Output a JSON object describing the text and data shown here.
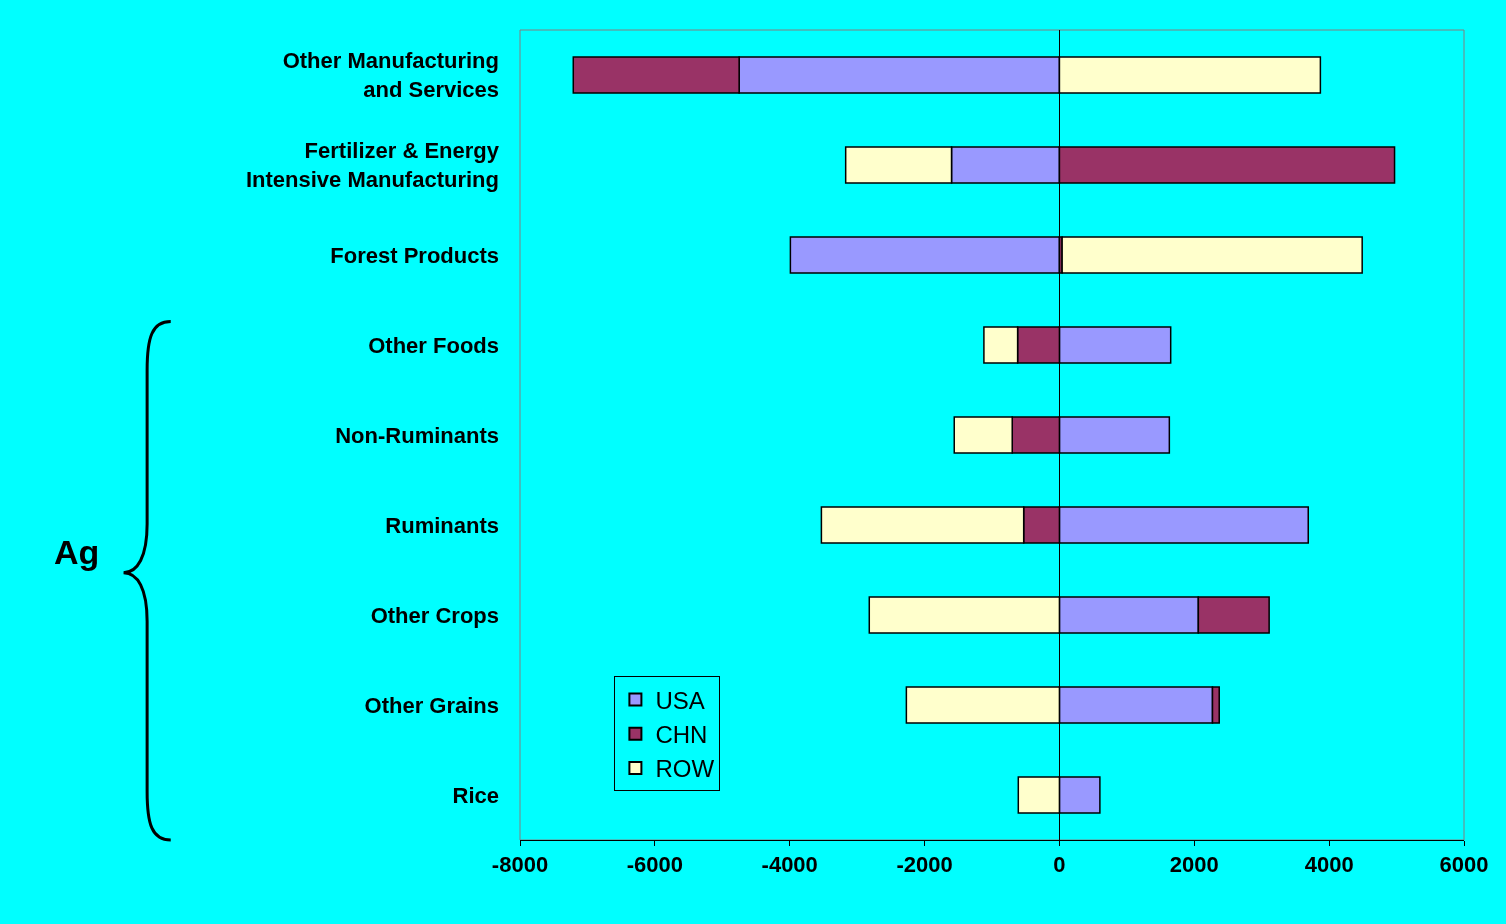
{
  "chart_data": {
    "type": "bar",
    "orientation": "horizontal",
    "stacked": true,
    "categories": [
      "Other Manufacturing\nand Services",
      "Fertilizer & Energy\nIntensive Manufacturing",
      "Forest Products",
      "Other Foods",
      "Non-Ruminants",
      "Ruminants",
      "Other Crops",
      "Other Grains",
      "Rice"
    ],
    "series": [
      {
        "name": "USA",
        "color": "#9999ff",
        "values": [
          -4750,
          -1600,
          -3990,
          1650,
          1630,
          3690,
          2060,
          2270,
          600
        ]
      },
      {
        "name": "CHN",
        "color": "#993366",
        "values": [
          -2460,
          4970,
          40,
          -620,
          -700,
          -530,
          1050,
          100,
          null
        ]
      },
      {
        "name": "ROW",
        "color": "#ffffcc",
        "values": [
          3870,
          -1570,
          4450,
          -500,
          -860,
          -3000,
          -2820,
          -2270,
          -610
        ]
      }
    ],
    "xlim": [
      -8000,
      6000
    ],
    "xticks": [
      -8000,
      -6000,
      -4000,
      -2000,
      0,
      2000,
      4000,
      6000
    ],
    "annotations": [
      "Ag"
    ],
    "legend": "bottom left"
  }
}
